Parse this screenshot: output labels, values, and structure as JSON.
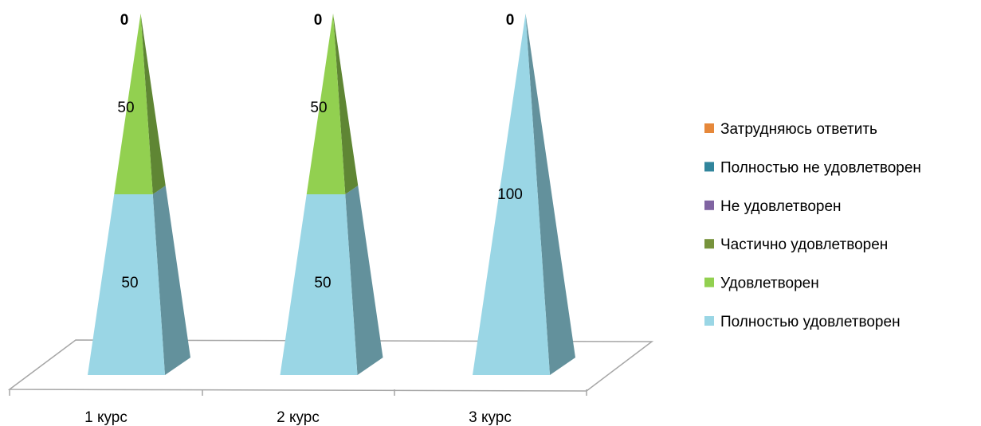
{
  "chart_data": {
    "type": "bar",
    "style": "3d-stacked-pyramid",
    "categories": [
      "1 курс",
      "2 курс",
      "3 курс"
    ],
    "series": [
      {
        "name": "Полностью удовлетворен",
        "values": [
          50,
          50,
          100
        ],
        "color": "#9ad6e5"
      },
      {
        "name": "Удовлетворен",
        "values": [
          50,
          50,
          0
        ],
        "color": "#92d050"
      },
      {
        "name": "Частично удовлетворен",
        "values": [
          0,
          0,
          0
        ],
        "color": "#77933c"
      },
      {
        "name": "Не удовлетворен",
        "values": [
          0,
          0,
          0
        ],
        "color": "#8064a2"
      },
      {
        "name": "Полностью не удовлетворен",
        "values": [
          0,
          0,
          0
        ],
        "color": "#31859c"
      },
      {
        "name": "Затрудняюсь ответить",
        "values": [
          0,
          0,
          0
        ],
        "color": "#e6883a"
      }
    ],
    "data_labels": [
      [
        "50",
        "50",
        "100"
      ],
      [
        "50",
        "50",
        ""
      ],
      [
        "0",
        "0",
        "0"
      ]
    ],
    "ylim": [
      0,
      100
    ],
    "legend_position": "right",
    "legend_order": [
      "Затрудняюсь ответить",
      "Полностью не удовлетворен",
      "Не удовлетворен",
      "Частично удовлетворен",
      "Удовлетворен",
      "Полностью удовлетворен"
    ],
    "title": "",
    "xlabel": "",
    "ylabel": ""
  }
}
